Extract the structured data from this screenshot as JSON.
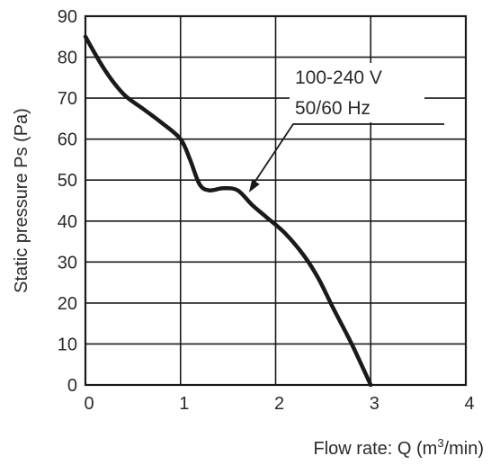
{
  "chart_data": {
    "type": "line",
    "title": "",
    "xlabel": "Flow rate: Q (m³/min)",
    "xlabel_parts": {
      "pre": "Flow rate: Q (m",
      "sup": "3",
      "post": "/min)"
    },
    "ylabel": "Static pressure Ps (Pa)",
    "xlim": [
      0,
      4
    ],
    "ylim": [
      0,
      90
    ],
    "x_ticks": [
      "0",
      "1",
      "2",
      "3",
      "4"
    ],
    "y_ticks": [
      "0",
      "10",
      "20",
      "30",
      "40",
      "50",
      "60",
      "70",
      "80",
      "90"
    ],
    "grid": true,
    "series": [
      {
        "x": [
          0,
          0.2,
          0.4,
          0.6,
          0.8,
          1.0,
          1.1,
          1.2,
          1.3,
          1.45,
          1.6,
          1.75,
          1.9,
          2.1,
          2.3,
          2.45,
          2.6,
          2.8,
          3.0
        ],
        "y": [
          85,
          77,
          71,
          67.5,
          64,
          60,
          55,
          49,
          47.5,
          48,
          47.5,
          44,
          41,
          37,
          31.5,
          26,
          19,
          10,
          0
        ]
      }
    ],
    "annotation": {
      "lines": [
        "100-240 V",
        "50/60 Hz"
      ],
      "points_to": {
        "x": 1.72,
        "y": 47
      }
    }
  }
}
